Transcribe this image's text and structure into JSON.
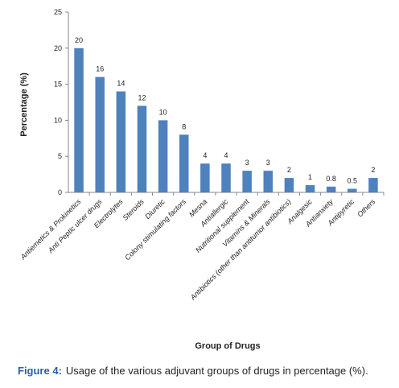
{
  "chart_data": {
    "type": "bar",
    "categories": [
      "Antiemetics & Prokinetics",
      "Anti Peptic ulcer drugs",
      "Electrolytes",
      "Steroids",
      "Diuretic",
      "Colony stimulating factors",
      "Mesna",
      "Antiallergic",
      "Nutritional supplement",
      "Vitamins & Minerals",
      "Antibiotics (other than antitumor antibiotics)",
      "Analgesic",
      "Antianxiety",
      "Antipyretic",
      "Others"
    ],
    "values": [
      20,
      16,
      14,
      12,
      10,
      8,
      4,
      4,
      3,
      3,
      2,
      1,
      0.8,
      0.5,
      2
    ],
    "color": "#4f81bd",
    "ylim": [
      0,
      25
    ],
    "yticks": [
      0,
      5,
      10,
      15,
      20,
      25
    ],
    "grid": false,
    "ylabel": "Percentage (%)",
    "xlabel": "Group of Drugs",
    "figure_label": "Figure 4:",
    "caption": "Usage of the various adjuvant groups of drugs in percentage (%)."
  }
}
